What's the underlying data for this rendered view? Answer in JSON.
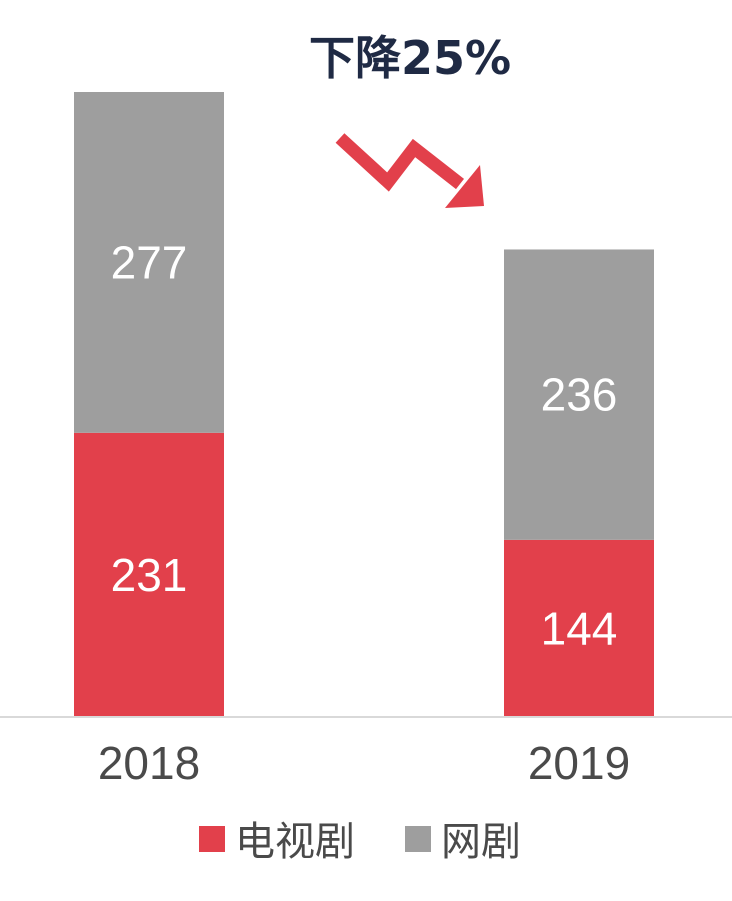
{
  "chart_data": {
    "type": "bar",
    "stacked": true,
    "categories": [
      "2018",
      "2019"
    ],
    "series": [
      {
        "name": "电视剧",
        "values": [
          231,
          144
        ],
        "color": "#e2404b"
      },
      {
        "name": "网剧",
        "values": [
          277,
          236
        ],
        "color": "#9e9e9e"
      }
    ],
    "annotation": {
      "text": "下降25%",
      "arrow_icon": "down-trend-arrow-icon",
      "color": "#e2404b"
    },
    "legend_position": "bottom",
    "grid": false,
    "ylim": [
      0,
      508
    ]
  }
}
